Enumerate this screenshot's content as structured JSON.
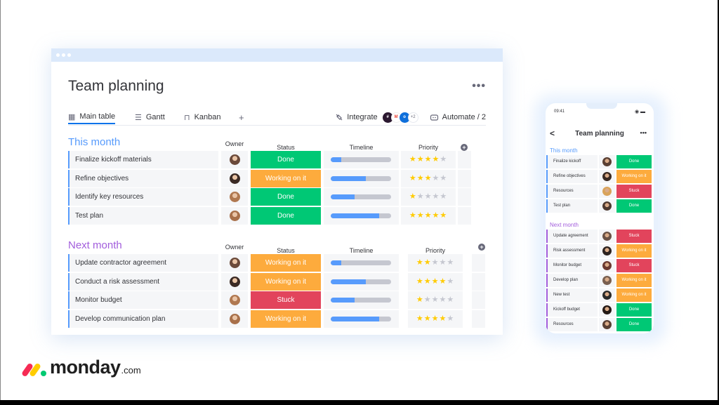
{
  "window": {
    "title": "Team planning",
    "more_label": "•••",
    "tabs": [
      {
        "label": "Main table",
        "icon": "table-icon",
        "glyph": "▦",
        "active": true
      },
      {
        "label": "Gantt",
        "icon": "gantt-icon",
        "glyph": "☰",
        "active": false
      },
      {
        "label": "Kanban",
        "icon": "kanban-icon",
        "glyph": "⊓",
        "active": false
      }
    ],
    "add_tab_label": "+",
    "integrate_label": "Integrate",
    "integrate_icon": "plug-icon",
    "integration_apps": [
      {
        "name": "slack",
        "color": "#2b1830",
        "glyph": "#"
      },
      {
        "name": "gmail",
        "color": "#ffffff",
        "glyph": "M"
      },
      {
        "name": "outlook",
        "color": "#0f6fdb",
        "glyph": "o"
      }
    ],
    "integration_more": "+2",
    "automate_label": "Automate / 2",
    "automate_icon": "robot-icon"
  },
  "columns": {
    "owner": "Owner",
    "status": "Status",
    "timeline": "Timeline",
    "priority": "Priority"
  },
  "groups": [
    {
      "title": "This month",
      "color": "#579bfc",
      "rows": [
        {
          "name": "Finalize kickoff materials",
          "avatar_color": "#6b4a3a",
          "status": "Done",
          "status_color": "#00c875",
          "timeline_pct": 18,
          "priority": 4
        },
        {
          "name": "Refine objectives",
          "avatar_color": "#3b2a24",
          "status": "Working on it",
          "status_color": "#fdab3d",
          "timeline_pct": 58,
          "priority": 3
        },
        {
          "name": "Identify key resources",
          "avatar_color": "#b07850",
          "status": "Done",
          "status_color": "#00c875",
          "timeline_pct": 40,
          "priority": 1
        },
        {
          "name": "Test plan",
          "avatar_color": "#a8704a",
          "status": "Done",
          "status_color": "#00c875",
          "timeline_pct": 80,
          "priority": 5
        }
      ]
    },
    {
      "title": "Next month",
      "color": "#a25ddc",
      "rows": [
        {
          "name": "Update contractor agreement",
          "avatar_color": "#6b4a3a",
          "status": "Working on it",
          "status_color": "#fdab3d",
          "timeline_pct": 18,
          "priority": 2
        },
        {
          "name": "Conduct a risk assessment",
          "avatar_color": "#3b2a24",
          "status": "Working on it",
          "status_color": "#fdab3d",
          "timeline_pct": 58,
          "priority": 4
        },
        {
          "name": "Monitor budget",
          "avatar_color": "#b07850",
          "status": "Stuck",
          "status_color": "#e2445c",
          "timeline_pct": 40,
          "priority": 1
        },
        {
          "name": "Develop communication plan",
          "avatar_color": "#a8704a",
          "status": "Working on it",
          "status_color": "#fdab3d",
          "timeline_pct": 80,
          "priority": 4
        }
      ]
    }
  ],
  "phone": {
    "time": "09:41",
    "status_icons": "◉ ▬",
    "back_label": "<",
    "title": "Team planning",
    "more_label": "•••",
    "groups": [
      {
        "title": "This month",
        "color": "#579bfc",
        "rows": [
          {
            "name": "Finalize kickoff",
            "avatar_color": "#5a4034",
            "status": "Done",
            "status_color": "#00c875"
          },
          {
            "name": "Refine objectives",
            "avatar_color": "#3a2a22",
            "status": "Working on it",
            "status_color": "#fdab3d"
          },
          {
            "name": "Resources",
            "avatar_color": "#d9a35a",
            "status": "Stuck",
            "status_color": "#e2445c"
          },
          {
            "name": "Test plan",
            "avatar_color": "#4e3a30",
            "status": "Done",
            "status_color": "#00c875"
          }
        ]
      },
      {
        "title": "Next month",
        "color": "#a25ddc",
        "rows": [
          {
            "name": "Update agreement",
            "avatar_color": "#6a5246",
            "status": "Stuck",
            "status_color": "#e2445c"
          },
          {
            "name": "Risk assessment",
            "avatar_color": "#2e2420",
            "status": "Working on it",
            "status_color": "#fdab3d"
          },
          {
            "name": "Monitor budget",
            "avatar_color": "#6b3a30",
            "status": "Stuck",
            "status_color": "#e2445c"
          },
          {
            "name": "Develop plan",
            "avatar_color": "#7a6050",
            "status": "Working on it",
            "status_color": "#fdab3d"
          },
          {
            "name": "New test",
            "avatar_color": "#2a2a2a",
            "status": "Working on it",
            "status_color": "#fdab3d"
          },
          {
            "name": "Kickoff budget",
            "avatar_color": "#241a16",
            "status": "Done",
            "status_color": "#00c875"
          },
          {
            "name": "Resources",
            "avatar_color": "#5a4034",
            "status": "Done",
            "status_color": "#00c875"
          }
        ]
      }
    ]
  },
  "brand": {
    "word": "monday",
    "suffix": ".com",
    "colors": [
      "#f62b54",
      "#ffcc00",
      "#00ca72"
    ]
  }
}
